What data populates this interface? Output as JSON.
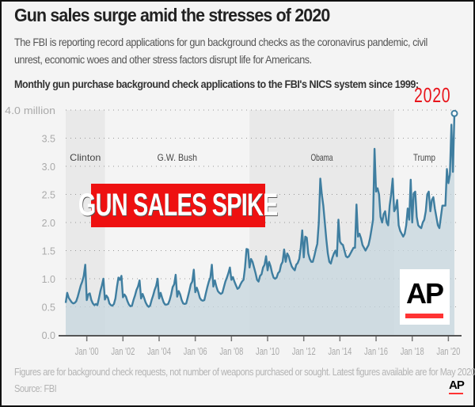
{
  "header": {
    "title": "Gun sales surge amid the stresses of 2020",
    "subtitle": "The FBI is reporting record applications for gun background checks as the coronavirus pandemic, civil unrest, economic woes and other stress factors disrupt life for Americans.",
    "chart_heading": "Monthly gun purchase background check applications to the FBI's NICS system since 1999:"
  },
  "overlays": {
    "banner": "GUN SALES SPIKE",
    "year_callout": "2020",
    "logo": "AP"
  },
  "footer": {
    "note": "Figures are for background check requests, not number of weapons purchased or sought. Latest figures available are for May 2020.",
    "source": "Source: FBI",
    "logo": "AP"
  },
  "colors": {
    "line": "#3f7ea0",
    "fill": "#c5d5de",
    "shade": "#e9e9e9",
    "accent": "#e8141b"
  },
  "chart_data": {
    "type": "area",
    "title": "Monthly gun purchase background check applications to the FBI's NICS system since 1999",
    "ylabel": "million",
    "ylim": [
      0,
      4.0
    ],
    "yticks": [
      {
        "v": 0,
        "label": "0.0"
      },
      {
        "v": 0.5,
        "label": "0.5"
      },
      {
        "v": 1.0,
        "label": "1.0"
      },
      {
        "v": 1.5,
        "label": "1.5"
      },
      {
        "v": 2.0,
        "label": "2.0"
      },
      {
        "v": 2.5,
        "label": "2.5"
      },
      {
        "v": 3.0,
        "label": "3.0"
      },
      {
        "v": 3.5,
        "label": "3.5"
      },
      {
        "v": 4.0,
        "label": "4.0 million"
      }
    ],
    "xticks": [
      {
        "year": 2000,
        "label": "Jan '00"
      },
      {
        "year": 2002,
        "label": "Jan '02"
      },
      {
        "year": 2004,
        "label": "Jan '04"
      },
      {
        "year": 2006,
        "label": "Jan '06"
      },
      {
        "year": 2008,
        "label": "Jan '08"
      },
      {
        "year": 2010,
        "label": "Jan '10"
      },
      {
        "year": 2012,
        "label": "Jan '12"
      },
      {
        "year": 2014,
        "label": "Jan '14"
      },
      {
        "year": 2016,
        "label": "Jan '16"
      },
      {
        "year": 2018,
        "label": "Jan '18"
      },
      {
        "year": 2020,
        "label": "Jan '20"
      }
    ],
    "grid": true,
    "start": "1998-11",
    "end": "2020-05",
    "presidencies": [
      {
        "name": "Clinton",
        "from": "1998-11",
        "to": "2001-01",
        "shaded": true
      },
      {
        "name": "G.W. Bush",
        "from": "2001-01",
        "to": "2009-01",
        "shaded": false
      },
      {
        "name": "Obama",
        "from": "2009-01",
        "to": "2017-01",
        "shaded": true
      },
      {
        "name": "Trump",
        "from": "2017-01",
        "to": "2020-05",
        "shaded": false
      }
    ],
    "values": [
      0.57,
      0.75,
      0.66,
      0.62,
      0.58,
      0.56,
      0.57,
      0.6,
      0.68,
      0.78,
      0.88,
      0.95,
      1.05,
      1.25,
      0.62,
      0.72,
      0.74,
      0.62,
      0.56,
      0.53,
      0.55,
      0.53,
      0.65,
      0.78,
      0.88,
      1.0,
      0.63,
      0.7,
      0.66,
      0.56,
      0.53,
      0.52,
      0.55,
      0.65,
      0.85,
      1.02,
      0.98,
      1.05,
      0.67,
      0.72,
      0.68,
      0.6,
      0.54,
      0.51,
      0.52,
      0.62,
      0.7,
      0.8,
      0.86,
      0.97,
      0.65,
      0.73,
      0.66,
      0.58,
      0.53,
      0.5,
      0.52,
      0.62,
      0.7,
      0.8,
      0.87,
      1.0,
      0.65,
      0.75,
      0.66,
      0.58,
      0.54,
      0.54,
      0.55,
      0.62,
      0.72,
      0.85,
      0.9,
      1.07,
      0.68,
      0.78,
      0.72,
      0.62,
      0.56,
      0.55,
      0.56,
      0.67,
      0.78,
      0.9,
      0.95,
      1.16,
      0.76,
      0.84,
      0.76,
      0.66,
      0.62,
      0.61,
      0.62,
      0.74,
      0.85,
      0.95,
      1.02,
      1.25,
      0.86,
      0.97,
      0.86,
      0.78,
      0.75,
      0.73,
      0.75,
      0.85,
      0.95,
      1.02,
      1.1,
      1.2,
      0.98,
      1.03,
      0.95,
      0.88,
      0.82,
      0.84,
      0.9,
      0.95,
      0.98,
      1.2,
      1.53,
      1.52,
      1.2,
      1.35,
      1.3,
      1.2,
      1.1,
      0.98,
      0.95,
      1.05,
      1.08,
      1.2,
      1.25,
      1.4,
      1.15,
      1.3,
      1.22,
      1.1,
      1.02,
      1.0,
      1.02,
      1.1,
      1.13,
      1.25,
      1.3,
      1.52,
      1.3,
      1.45,
      1.4,
      1.3,
      1.22,
      1.18,
      1.15,
      1.25,
      1.28,
      1.35,
      1.55,
      1.86,
      1.38,
      1.75,
      1.73,
      1.45,
      1.35,
      1.3,
      1.3,
      1.4,
      1.52,
      1.62,
      2.0,
      2.78,
      2.5,
      2.3,
      2.0,
      1.7,
      1.45,
      1.3,
      1.27,
      1.37,
      1.45,
      1.5,
      1.4,
      2.05,
      1.66,
      1.62,
      1.6,
      1.5,
      1.4,
      1.38,
      1.4,
      1.45,
      1.5,
      1.55,
      1.55,
      2.32,
      1.75,
      1.8,
      1.72,
      1.6,
      1.55,
      1.5,
      1.55,
      1.6,
      1.72,
      1.88,
      2.05,
      3.31,
      2.55,
      2.61,
      2.5,
      2.1,
      2.0,
      2.15,
      2.2,
      2.0,
      1.95,
      2.3,
      2.5,
      2.78,
      2.2,
      2.25,
      2.4,
      1.95,
      1.85,
      1.8,
      1.75,
      1.8,
      1.95,
      2.25,
      2.05,
      2.76,
      2.0,
      2.52,
      2.55,
      2.1,
      1.95,
      1.92,
      1.9,
      2.0,
      2.05,
      2.2,
      2.5,
      2.55,
      2.2,
      2.4,
      2.45,
      2.25,
      2.1,
      1.95,
      1.9,
      2.1,
      2.3,
      2.3,
      2.3,
      2.95,
      2.7,
      2.85,
      3.74,
      2.9,
      3.94
    ]
  }
}
